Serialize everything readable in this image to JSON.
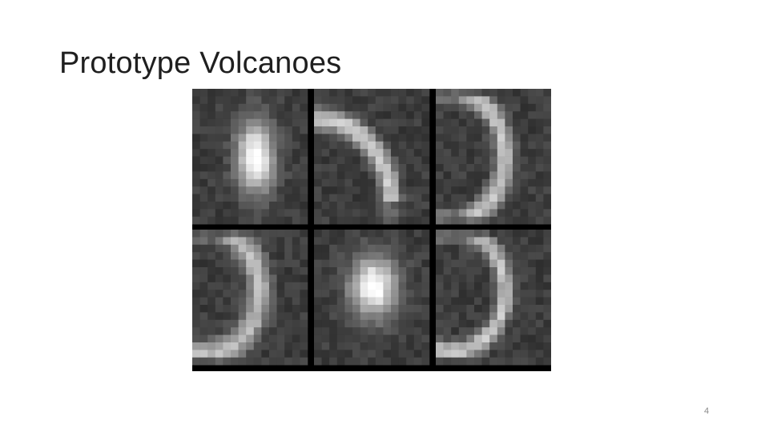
{
  "slide": {
    "title": "Prototype Volcanoes",
    "page_number": "4"
  },
  "figure": {
    "name": "prototype-volcano-grid",
    "rows": 2,
    "cols": 3,
    "patches": [
      {
        "shape": "blob"
      },
      {
        "shape": "arc"
      },
      {
        "shape": "crescent"
      },
      {
        "shape": "crescent-soft"
      },
      {
        "shape": "blob-round"
      },
      {
        "shape": "crescent-narrow"
      }
    ]
  }
}
